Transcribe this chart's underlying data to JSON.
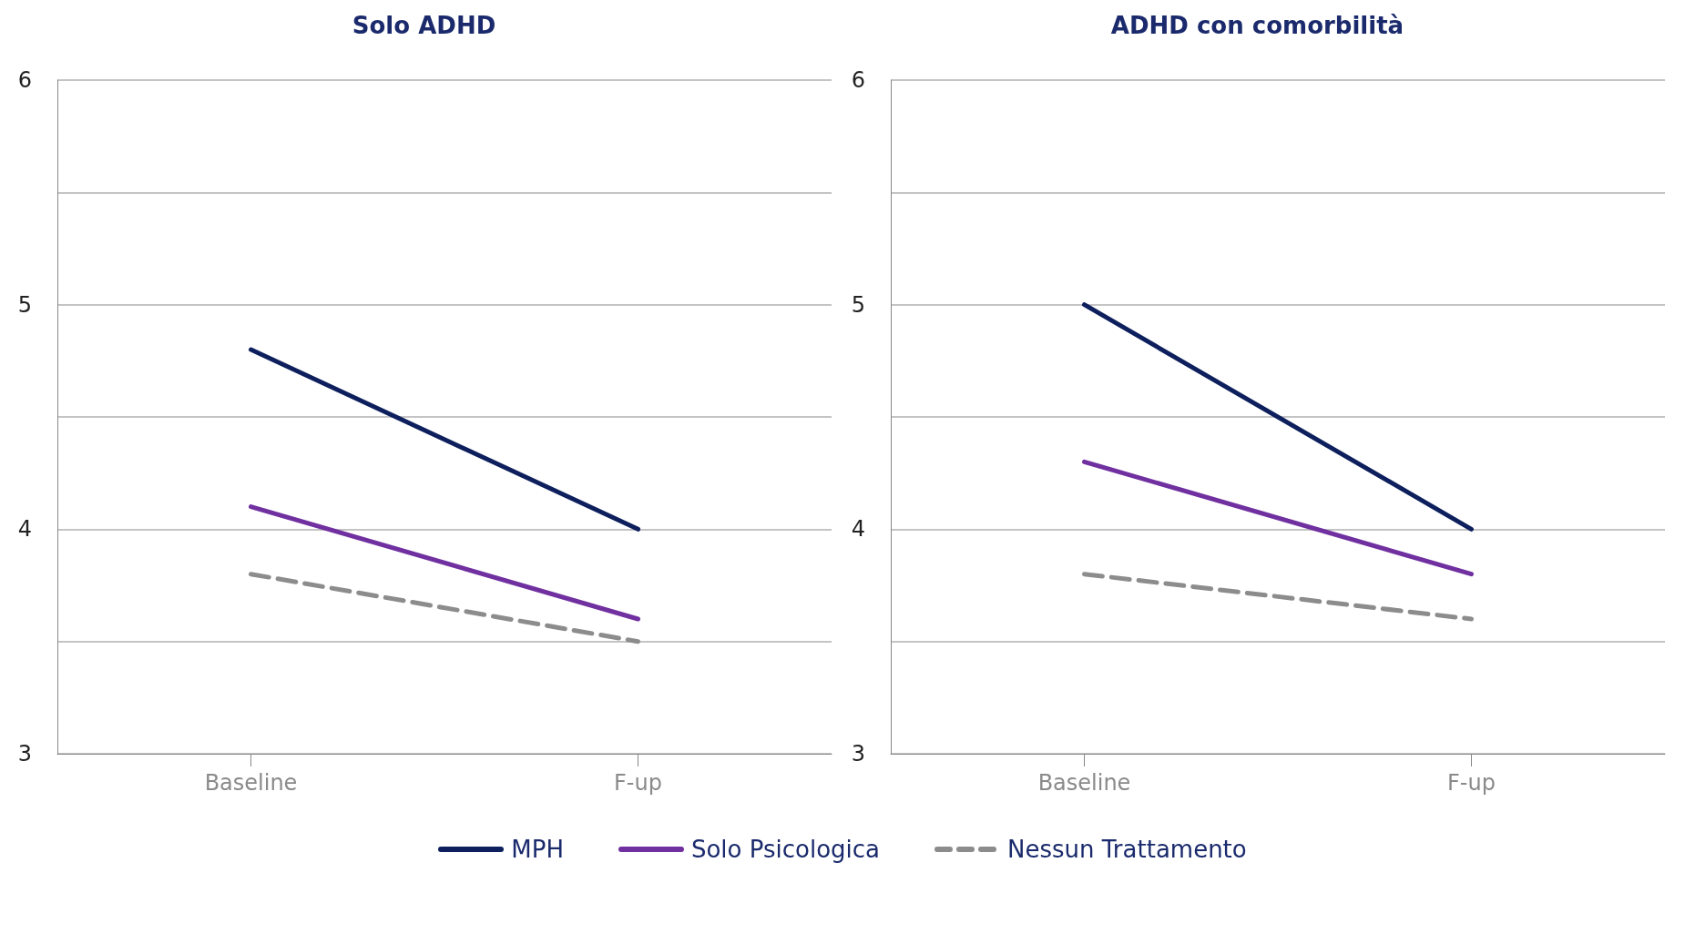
{
  "chart_data": [
    {
      "type": "line",
      "title": "Solo ADHD",
      "categories": [
        "Baseline",
        "F-up"
      ],
      "ylim": [
        3,
        6
      ],
      "yticks": [
        3,
        {
          "value": 3.5,
          "label": null
        },
        4,
        {
          "value": 4.5,
          "label": null
        },
        5,
        {
          "value": 5.5,
          "label": null
        },
        6
      ],
      "grid": "y",
      "legend": "bottom",
      "marker": "none",
      "series": [
        {
          "name": "MPH",
          "color": "#0d1f5c",
          "values": [
            4.8,
            4.0
          ],
          "line_style": "solid"
        },
        {
          "name": "Solo Psicologica",
          "color": "#7030a0",
          "values": [
            4.1,
            3.6
          ],
          "line_style": "solid"
        },
        {
          "name": "Nessun Trattamento",
          "color": "#8c8c8c",
          "values": [
            3.8,
            3.5
          ],
          "line_style": "dashed"
        }
      ]
    },
    {
      "type": "line",
      "title": "ADHD con comorbilità",
      "categories": [
        "Baseline",
        "F-up"
      ],
      "ylim": [
        3,
        6
      ],
      "yticks": [
        3,
        {
          "value": 3.5,
          "label": null
        },
        4,
        {
          "value": 4.5,
          "label": null
        },
        5,
        {
          "value": 5.5,
          "label": null
        },
        6
      ],
      "grid": "y",
      "marker": "none",
      "series": [
        {
          "color": "#0d1f5c",
          "values": [
            5.0,
            4.0
          ],
          "line_style": "solid"
        },
        {
          "color": "#7030a0",
          "values": [
            4.3,
            3.8
          ],
          "line_style": "solid"
        },
        {
          "color": "#8c8c8c",
          "values": [
            3.8,
            3.6
          ],
          "line_style": "dashed"
        }
      ]
    }
  ]
}
